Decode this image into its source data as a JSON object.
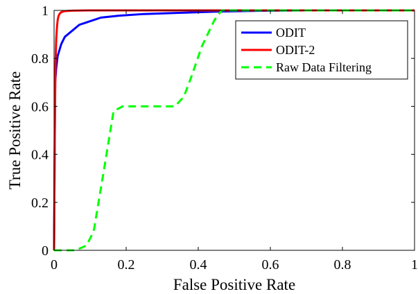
{
  "chart_data": {
    "type": "line",
    "title": "",
    "xlabel": "False Positive Rate",
    "ylabel": "True Positive Rate",
    "xlim": [
      0,
      1
    ],
    "ylim": [
      0,
      1
    ],
    "xticks": [
      0,
      0.2,
      0.4,
      0.6,
      0.8,
      1
    ],
    "yticks": [
      0,
      0.2,
      0.4,
      0.6,
      0.8,
      1
    ],
    "xtick_labels": [
      "0",
      "0.2",
      "0.4",
      "0.6",
      "0.8",
      "1"
    ],
    "ytick_labels": [
      "0",
      "0.2",
      "0.4",
      "0.6",
      "0.8",
      "1"
    ],
    "grid": false,
    "legend_position": "top-right",
    "series": [
      {
        "name": "ODIT",
        "color": "#0000ff",
        "dash": "solid",
        "x": [
          0,
          0.003,
          0.006,
          0.01,
          0.02,
          0.03,
          0.05,
          0.07,
          0.1,
          0.13,
          0.18,
          0.25,
          0.35,
          0.45,
          0.55,
          0.7,
          1.0
        ],
        "y": [
          0,
          0.7,
          0.76,
          0.81,
          0.86,
          0.89,
          0.915,
          0.94,
          0.955,
          0.97,
          0.978,
          0.985,
          0.99,
          0.995,
          0.998,
          1.0,
          1.0
        ]
      },
      {
        "name": "ODIT-2",
        "color": "#ff0000",
        "dash": "solid",
        "x": [
          0,
          0.002,
          0.004,
          0.006,
          0.008,
          0.01,
          0.012,
          0.015,
          0.02,
          0.03,
          0.05,
          0.1,
          0.3,
          1.0
        ],
        "y": [
          0,
          0.5,
          0.78,
          0.88,
          0.93,
          0.96,
          0.975,
          0.985,
          0.993,
          0.997,
          0.999,
          1.0,
          1.0,
          1.0
        ]
      },
      {
        "name": "Raw Data Filtering",
        "color": "#00ff00",
        "dash": "dashed",
        "x": [
          0,
          0.06,
          0.09,
          0.11,
          0.14,
          0.165,
          0.19,
          0.25,
          0.335,
          0.36,
          0.38,
          0.41,
          0.445,
          0.465,
          0.48,
          1.0
        ],
        "y": [
          0,
          0,
          0.02,
          0.08,
          0.35,
          0.58,
          0.6,
          0.6,
          0.6,
          0.64,
          0.72,
          0.85,
          0.96,
          1.0,
          1.0,
          1.0
        ]
      }
    ]
  }
}
